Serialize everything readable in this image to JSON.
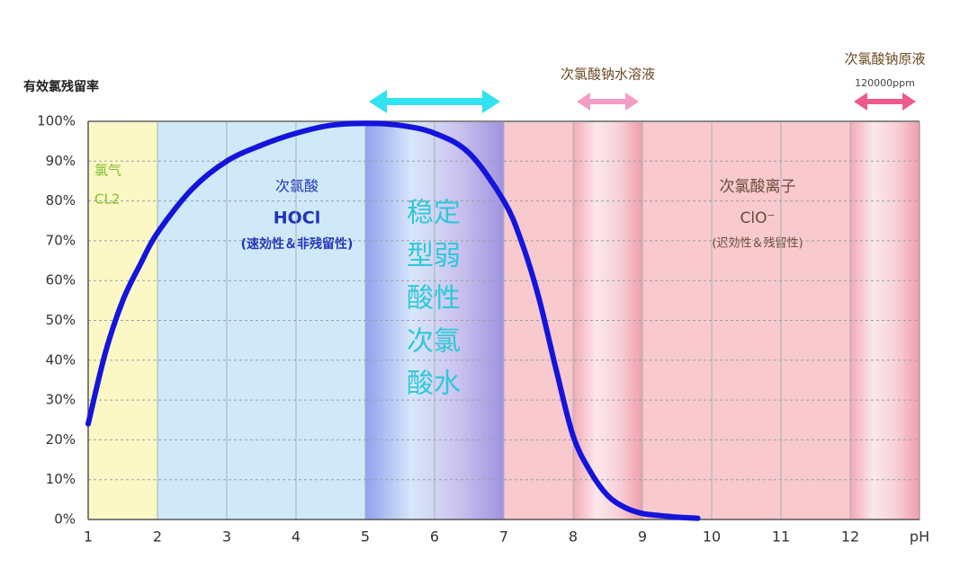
{
  "chart_data": {
    "type": "line",
    "y_label": "有效氯残留率",
    "x_label": "pH",
    "xlim": [
      1,
      13
    ],
    "ylim": [
      0,
      100
    ],
    "xticks": [
      1,
      2,
      3,
      4,
      5,
      6,
      7,
      8,
      9,
      10,
      11,
      12
    ],
    "yticks": [
      {
        "value": 0,
        "label": "0%"
      },
      {
        "value": 10,
        "label": "10%"
      },
      {
        "value": 20,
        "label": "20%"
      },
      {
        "value": 30,
        "label": "30%"
      },
      {
        "value": 40,
        "label": "40%"
      },
      {
        "value": 50,
        "label": "50%"
      },
      {
        "value": 60,
        "label": "60%"
      },
      {
        "value": 70,
        "label": "70%"
      },
      {
        "value": 80,
        "label": "80%"
      },
      {
        "value": 90,
        "label": "90%"
      },
      {
        "value": 100,
        "label": "100%"
      }
    ],
    "grid": true,
    "color": "#1414dc",
    "x": [
      1,
      1.25,
      1.5,
      1.75,
      2,
      2.5,
      3,
      3.5,
      4,
      4.5,
      5,
      5.5,
      6,
      6.5,
      7,
      7.25,
      7.5,
      7.75,
      8,
      8.25,
      8.5,
      8.75,
      9,
      9.25,
      9.5,
      9.8
    ],
    "values": [
      24,
      42,
      55,
      64,
      72,
      83,
      90,
      94,
      97,
      99,
      99.5,
      99,
      97,
      92,
      80,
      70,
      56,
      38,
      21,
      12,
      6,
      3,
      1.5,
      1,
      0.6,
      0.3
    ],
    "regions": [
      {
        "x_range": [
          1,
          2
        ],
        "colors": [
          "#fbf8c6",
          "#fbf8c6"
        ],
        "text_color": "#7cbf2c",
        "lines": [
          "氯气",
          "CL2"
        ]
      },
      {
        "x_range": [
          2,
          5
        ],
        "colors": [
          "#cfe9f8",
          "#cfe9f8"
        ],
        "text_color": "#2233bb",
        "lines": [
          "次氯酸",
          "HOCl",
          "(速効性＆非残留性)"
        ]
      },
      {
        "x_range": [
          5,
          7
        ],
        "colors": [
          "#8fa2ee",
          "#d8e6fa",
          "#cbc3ef",
          "#a093df"
        ],
        "text_color": "#2ec9d8",
        "lines": [
          "稳定",
          "型弱",
          "酸性",
          "次氯",
          "酸水"
        ]
      },
      {
        "x_range": [
          7,
          13
        ],
        "colors": [
          "#f8c9cd",
          "#f8c9cd"
        ],
        "text_color": "#6a4a3a",
        "lines": [
          "次氯酸离子",
          "ClO⁻",
          "(迟効性＆残留性)"
        ]
      },
      {
        "x_range": [
          8,
          9
        ],
        "colors": [
          "#f2a9b4",
          "#fbe8ec",
          "#f7d0d7",
          "#f09eab"
        ],
        "text_color": "#6a4a3a",
        "lines": []
      },
      {
        "x_range": [
          12,
          13
        ],
        "colors": [
          "#f2a9b4",
          "#fbe8ec",
          "#f7d0d7",
          "#f09eab"
        ],
        "text_color": "#6a4a3a",
        "lines": []
      }
    ],
    "arrows": [
      {
        "x_range": [
          5,
          7
        ],
        "color": "#33e2f0"
      },
      {
        "x_range": [
          8,
          9
        ],
        "color": "#f49dc4",
        "label": "次氯酸钠水溶液"
      },
      {
        "x_range": [
          12,
          13
        ],
        "color": "#ee5a8a",
        "label": "次氯酸钠原液",
        "sublabel": "120000ppm"
      }
    ]
  }
}
